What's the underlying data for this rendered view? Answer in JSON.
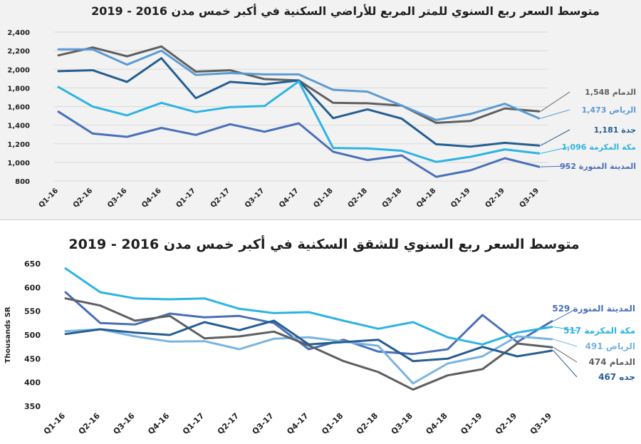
{
  "chart_data": [
    {
      "type": "line",
      "title": "متوسط السعر ربع السنوي للمتر المربع للأراضي السكنية في أكبر خمس مدن 2016 - 2019",
      "ylabel": "",
      "ylim": [
        800,
        2400
      ],
      "yticks": [
        "800",
        "1,000",
        "1,200",
        "1,400",
        "1,600",
        "1,800",
        "2,000",
        "2,200",
        "2,400"
      ],
      "categories": [
        "Q1-16",
        "Q2-16",
        "Q3-16",
        "Q4-16",
        "Q1-17",
        "Q2-17",
        "Q3-17",
        "Q4-17",
        "Q1-18",
        "Q2-18",
        "Q3-18",
        "Q4-18",
        "Q1-19",
        "Q2-19",
        "Q3-19"
      ],
      "grid": true,
      "series": [
        {
          "name": "الدمام",
          "label": "الدمام 1,548",
          "color": "#5f5f5f",
          "values": [
            2150,
            2235,
            2140,
            2245,
            1975,
            1990,
            1895,
            1880,
            1640,
            1635,
            1610,
            1425,
            1445,
            1580,
            1548
          ]
        },
        {
          "name": "الرياض",
          "label": "الرياض 1,473",
          "color": "#5b9bd5",
          "values": [
            2215,
            2215,
            2050,
            2200,
            1940,
            1960,
            1945,
            1945,
            1780,
            1760,
            1610,
            1455,
            1520,
            1630,
            1473
          ]
        },
        {
          "name": "جدة",
          "label": "1,181 جدة",
          "color": "#255e91",
          "values": [
            1980,
            1990,
            1865,
            2120,
            1690,
            1865,
            1840,
            1880,
            1475,
            1570,
            1470,
            1195,
            1170,
            1210,
            1181
          ]
        },
        {
          "name": "مكة المكرمة",
          "label": "مكة المكرمة 1,096",
          "color": "#2db3e3",
          "values": [
            1810,
            1600,
            1505,
            1640,
            1540,
            1595,
            1605,
            1870,
            1155,
            1150,
            1125,
            1005,
            1060,
            1140,
            1096
          ]
        },
        {
          "name": "المدينة المنورة",
          "label": "المدينة المنورة 952",
          "color": "#4a6fb8",
          "values": [
            1545,
            1310,
            1275,
            1370,
            1295,
            1410,
            1330,
            1420,
            1115,
            1025,
            1075,
            845,
            915,
            1045,
            952
          ]
        }
      ]
    },
    {
      "type": "line",
      "title": "متوسط السعر ربع السنوي للشقق السكنية في أكبر خمس مدن 2016 - 2019",
      "ylabel": "Thousands SR",
      "ylim": [
        350,
        650
      ],
      "yticks": [
        "350",
        "400",
        "450",
        "500",
        "550",
        "600",
        "650"
      ],
      "categories": [
        "Q1-16",
        "Q2-16",
        "Q3-16",
        "Q4-16",
        "Q1-17",
        "Q2-17",
        "Q3-17",
        "Q4-17",
        "Q1-18",
        "Q2-18",
        "Q3-18",
        "Q4-18",
        "Q1-19",
        "Q2-19",
        "Q3-19"
      ],
      "grid": false,
      "series": [
        {
          "name": "المدينة المنورة",
          "label": "المدينة المنورة 529",
          "color": "#4a6fb8",
          "values": [
            590,
            525,
            522,
            545,
            537,
            540,
            525,
            470,
            490,
            465,
            460,
            470,
            542,
            485,
            529
          ]
        },
        {
          "name": "مكة المكرمة",
          "label": "مكة المكرمة 517",
          "color": "#2db3e3",
          "values": [
            640,
            590,
            577,
            575,
            577,
            555,
            546,
            548,
            530,
            513,
            527,
            495,
            480,
            505,
            517
          ]
        },
        {
          "name": "الرياض",
          "label": "الرياض 491",
          "color": "#7ab3e0",
          "values": [
            508,
            512,
            497,
            486,
            487,
            470,
            492,
            495,
            486,
            477,
            398,
            440,
            455,
            497,
            491
          ]
        },
        {
          "name": "الدمام",
          "label": "الدمام 474",
          "color": "#5f5f5f",
          "values": [
            577,
            562,
            530,
            540,
            493,
            497,
            507,
            478,
            445,
            422,
            385,
            415,
            428,
            482,
            474
          ]
        },
        {
          "name": "جدة",
          "label": "467 جده",
          "color": "#255e91",
          "values": [
            502,
            512,
            505,
            500,
            527,
            510,
            530,
            480,
            485,
            490,
            445,
            450,
            475,
            455,
            467
          ]
        }
      ]
    }
  ]
}
